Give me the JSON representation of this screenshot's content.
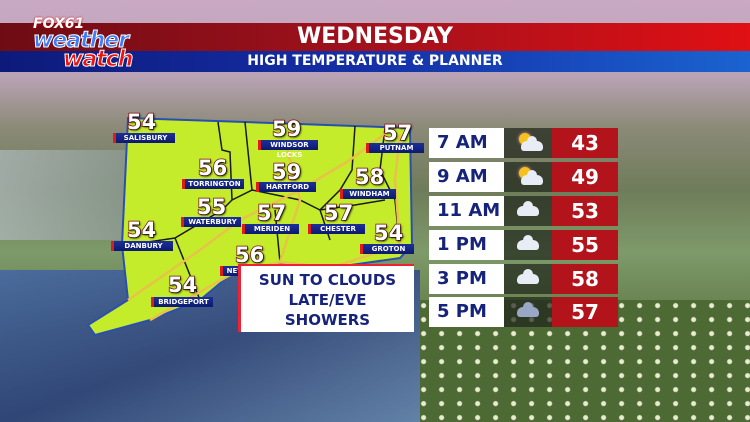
{
  "header": {
    "title": "WEDNESDAY",
    "subtitle": "HIGH TEMPERATURE & PLANNER"
  },
  "logo": {
    "line1": "FOX61",
    "line2": "weather",
    "line3": "watch"
  },
  "map": {
    "region_color": "#c4ec2a",
    "cities": [
      {
        "name": "SALISBURY",
        "temp": "54"
      },
      {
        "name": "WINDSOR LOCKS",
        "temp": "59"
      },
      {
        "name": "PUTNAM",
        "temp": "57"
      },
      {
        "name": "TORRINGTON",
        "temp": "56"
      },
      {
        "name": "HARTFORD",
        "temp": "59"
      },
      {
        "name": "WINDHAM",
        "temp": "58"
      },
      {
        "name": "WATERBURY",
        "temp": "55"
      },
      {
        "name": "MERIDEN",
        "temp": "57"
      },
      {
        "name": "CHESTER",
        "temp": "57"
      },
      {
        "name": "DANBURY",
        "temp": "54"
      },
      {
        "name": "GROTON",
        "temp": "54"
      },
      {
        "name": "NEW HAVEN",
        "temp": "56"
      },
      {
        "name": "BRIDGEPORT",
        "temp": "54"
      }
    ]
  },
  "callout": {
    "line1": "SUN TO CLOUDS",
    "line2": "LATE/EVE",
    "line3": "SHOWERS"
  },
  "planner": [
    {
      "time": "7 AM",
      "icon": "partly-cloudy-icon",
      "temp": "43"
    },
    {
      "time": "9 AM",
      "icon": "partly-cloudy-icon",
      "temp": "49"
    },
    {
      "time": "11 AM",
      "icon": "cloudy-icon",
      "temp": "53"
    },
    {
      "time": "1 PM",
      "icon": "cloudy-icon",
      "temp": "55"
    },
    {
      "time": "3 PM",
      "icon": "cloudy-icon",
      "temp": "58"
    },
    {
      "time": "5 PM",
      "icon": "showers-icon",
      "temp": "57"
    }
  ]
}
